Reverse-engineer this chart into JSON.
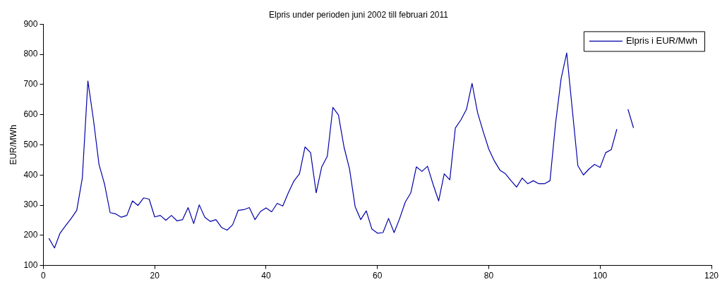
{
  "chart_data": {
    "type": "line",
    "title": "Elpris under perioden juni 2002 till februari 2011",
    "ylabel": "EUR/MWh",
    "x": [
      1,
      2,
      3,
      4,
      5,
      6,
      7,
      8,
      9,
      10,
      11,
      12,
      13,
      14,
      15,
      16,
      17,
      18,
      19,
      20,
      21,
      22,
      23,
      24,
      25,
      26,
      27,
      28,
      29,
      30,
      31,
      32,
      33,
      34,
      35,
      36,
      37,
      38,
      39,
      40,
      41,
      42,
      43,
      44,
      45,
      46,
      47,
      48,
      49,
      50,
      51,
      52,
      53,
      54,
      55,
      56,
      57,
      58,
      59,
      60,
      61,
      62,
      63,
      64,
      65,
      66,
      67,
      68,
      69,
      70,
      71,
      72,
      73,
      74,
      75,
      76,
      77,
      78,
      79,
      80,
      81,
      82,
      83,
      84,
      85,
      86,
      87,
      88,
      89,
      90,
      91,
      92,
      93,
      94,
      95,
      96,
      97,
      98,
      99,
      100,
      101,
      102,
      103,
      104,
      105,
      106
    ],
    "series": [
      {
        "name": "Elpris i EUR/Mwh",
        "color": "#0000aa",
        "values": [
          190,
          158,
          207,
          232,
          256,
          283,
          390,
          712,
          583,
          435,
          369,
          275,
          271,
          260,
          266,
          314,
          299,
          324,
          320,
          261,
          266,
          250,
          266,
          248,
          252,
          292,
          239,
          301,
          260,
          246,
          252,
          226,
          217,
          235,
          283,
          285,
          292,
          252,
          279,
          291,
          278,
          306,
          297,
          341,
          380,
          404,
          493,
          474,
          341,
          427,
          462,
          624,
          599,
          493,
          419,
          295,
          252,
          281,
          221,
          207,
          209,
          256,
          209,
          256,
          310,
          341,
          427,
          412,
          429,
          369,
          314,
          404,
          384,
          556,
          583,
          618,
          704,
          606,
          544,
          486,
          447,
          416,
          404,
          381,
          360,
          390,
          371,
          381,
          371,
          371,
          381,
          572,
          720,
          805,
          618,
          431,
          400,
          420,
          435,
          425,
          474,
          484,
          552,
          null,
          618,
          556
        ]
      }
    ],
    "xlim": [
      0,
      120
    ],
    "xticks": [
      0,
      20,
      40,
      60,
      80,
      100,
      120
    ],
    "ylim": [
      100,
      900
    ],
    "yticks": [
      100,
      200,
      300,
      400,
      500,
      600,
      700,
      800,
      900
    ],
    "grid": false,
    "legend": "top right",
    "marker": "none",
    "line_style": "solid"
  }
}
